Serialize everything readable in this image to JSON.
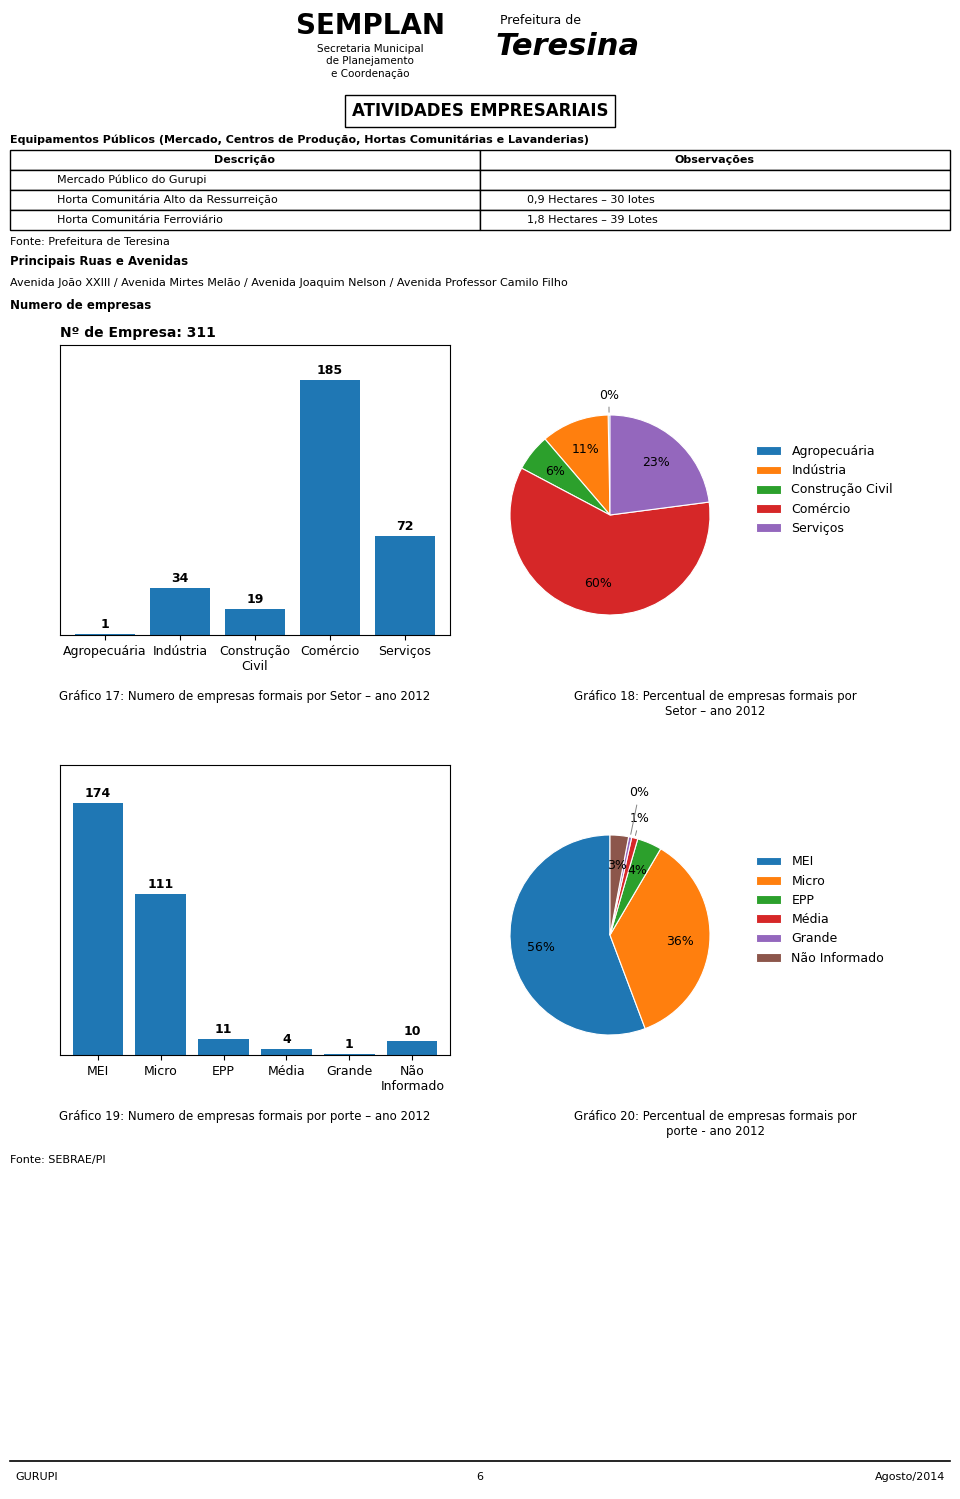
{
  "title": "ATIVIDADES EMPRESARIAIS",
  "annotations": [
    "SEMPLAN",
    "Secretaria Municipal\nde Planejamento\ne Coordenação",
    "Prefeitura de",
    "Teresina",
    "Equipamentos Públicos (Mercado, Centros de Produção, Hortas Comunitárias e Lavanderias)"
  ],
  "table": {
    "columns": [
      "Descrição",
      "Observações"
    ],
    "rows": [
      [
        "Mercado Público do Gurupi",
        null
      ],
      [
        "Horta Comunitária Alto da Ressurreição",
        "0,9 Hectares – 30 lotes"
      ],
      [
        "Horta Comunitária Ferroviário",
        "1,8 Hectares – 39 Lotes"
      ]
    ]
  },
  "notes": [
    "Fonte: Prefeitura de Teresina",
    "Principais Ruas e Avenidas",
    "Avenida João XXIII / Avenida Mirtes Melão / Avenida Joaquim Nelson / Avenida Professor Camilo Filho",
    "Numero de empresas"
  ],
  "chart_data": [
    {
      "type": "bar",
      "title": "Nº de Empresa: 311",
      "categories": [
        "Agropecuária",
        "Indústria",
        "Construção\nCivil",
        "Comércio",
        "Serviços"
      ],
      "values": [
        1,
        34,
        19,
        185,
        72
      ],
      "ylim": [
        0,
        210
      ],
      "data_labels": true,
      "tick_labels": "x",
      "annotations": [
        "Gráfico 17: Numero de empresas formais por Setor – ano 2012"
      ]
    },
    {
      "type": "pie",
      "categories": [
        "Agropecuária",
        "Indústria",
        "Construção Civil",
        "Comércio",
        "Serviços"
      ],
      "values": [
        0.3,
        11,
        6,
        60,
        23
      ],
      "value_labels": [
        "0%",
        "11%",
        "6%",
        "60%",
        "23%"
      ],
      "data_labels": true,
      "legend": "center left",
      "annotations": [
        "Gráfico 18: Percentual de empresas formais por\nSetor – ano 2012"
      ]
    },
    {
      "type": "bar",
      "categories": [
        "MEI",
        "Micro",
        "EPP",
        "Média",
        "Grande",
        "Não\nInformado"
      ],
      "values": [
        174,
        111,
        11,
        4,
        1,
        10
      ],
      "ylim": [
        0,
        200
      ],
      "data_labels": true,
      "tick_labels": "x",
      "annotations": [
        "Gráfico 19: Numero de empresas formais por porte – ano 2012"
      ]
    },
    {
      "type": "pie",
      "categories": [
        "MEI",
        "Micro",
        "EPP",
        "Média",
        "Grande",
        "Não Informado"
      ],
      "values": [
        56,
        36,
        4,
        1,
        0.5,
        3
      ],
      "value_labels": [
        "56%",
        "36%",
        "4%",
        "1%",
        "0%",
        "3%"
      ],
      "data_labels": true,
      "legend": "center left",
      "annotations": [
        "Gráfico 20: Percentual de empresas formais por\nporte - ano 2012"
      ]
    }
  ],
  "footer": [
    "Fonte: SEBRAE/PI",
    "GURUPI",
    "6",
    "Agosto/2014"
  ]
}
